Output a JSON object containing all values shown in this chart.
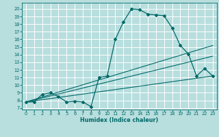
{
  "title": "",
  "xlabel": "Humidex (Indice chaleur)",
  "ylabel": "",
  "xlim": [
    -0.5,
    23.5
  ],
  "ylim": [
    6.8,
    20.8
  ],
  "yticks": [
    7,
    8,
    9,
    10,
    11,
    12,
    13,
    14,
    15,
    16,
    17,
    18,
    19,
    20
  ],
  "xticks": [
    0,
    1,
    2,
    3,
    4,
    5,
    6,
    7,
    8,
    9,
    10,
    11,
    12,
    13,
    14,
    15,
    16,
    17,
    18,
    19,
    20,
    21,
    22,
    23
  ],
  "bg_color": "#b8dede",
  "line_color": "#006868",
  "grid_color": "#e0f0f0",
  "lines": [
    {
      "x": [
        0,
        1,
        2,
        3,
        4,
        5,
        6,
        7,
        8,
        9,
        10,
        11,
        12,
        13,
        14,
        15,
        16,
        17,
        18,
        19,
        20,
        21,
        22,
        23
      ],
      "y": [
        7.8,
        7.8,
        8.8,
        9.0,
        8.5,
        7.8,
        7.9,
        7.8,
        7.2,
        11.0,
        11.2,
        16.0,
        18.3,
        20.0,
        19.9,
        19.3,
        19.2,
        19.1,
        17.5,
        15.2,
        14.1,
        11.2,
        12.2,
        11.2
      ],
      "with_markers": true
    },
    {
      "x": [
        0,
        23
      ],
      "y": [
        7.8,
        15.2
      ],
      "with_markers": false
    },
    {
      "x": [
        0,
        23
      ],
      "y": [
        7.8,
        13.8
      ],
      "with_markers": false
    },
    {
      "x": [
        0,
        23
      ],
      "y": [
        7.8,
        11.2
      ],
      "with_markers": false
    }
  ]
}
